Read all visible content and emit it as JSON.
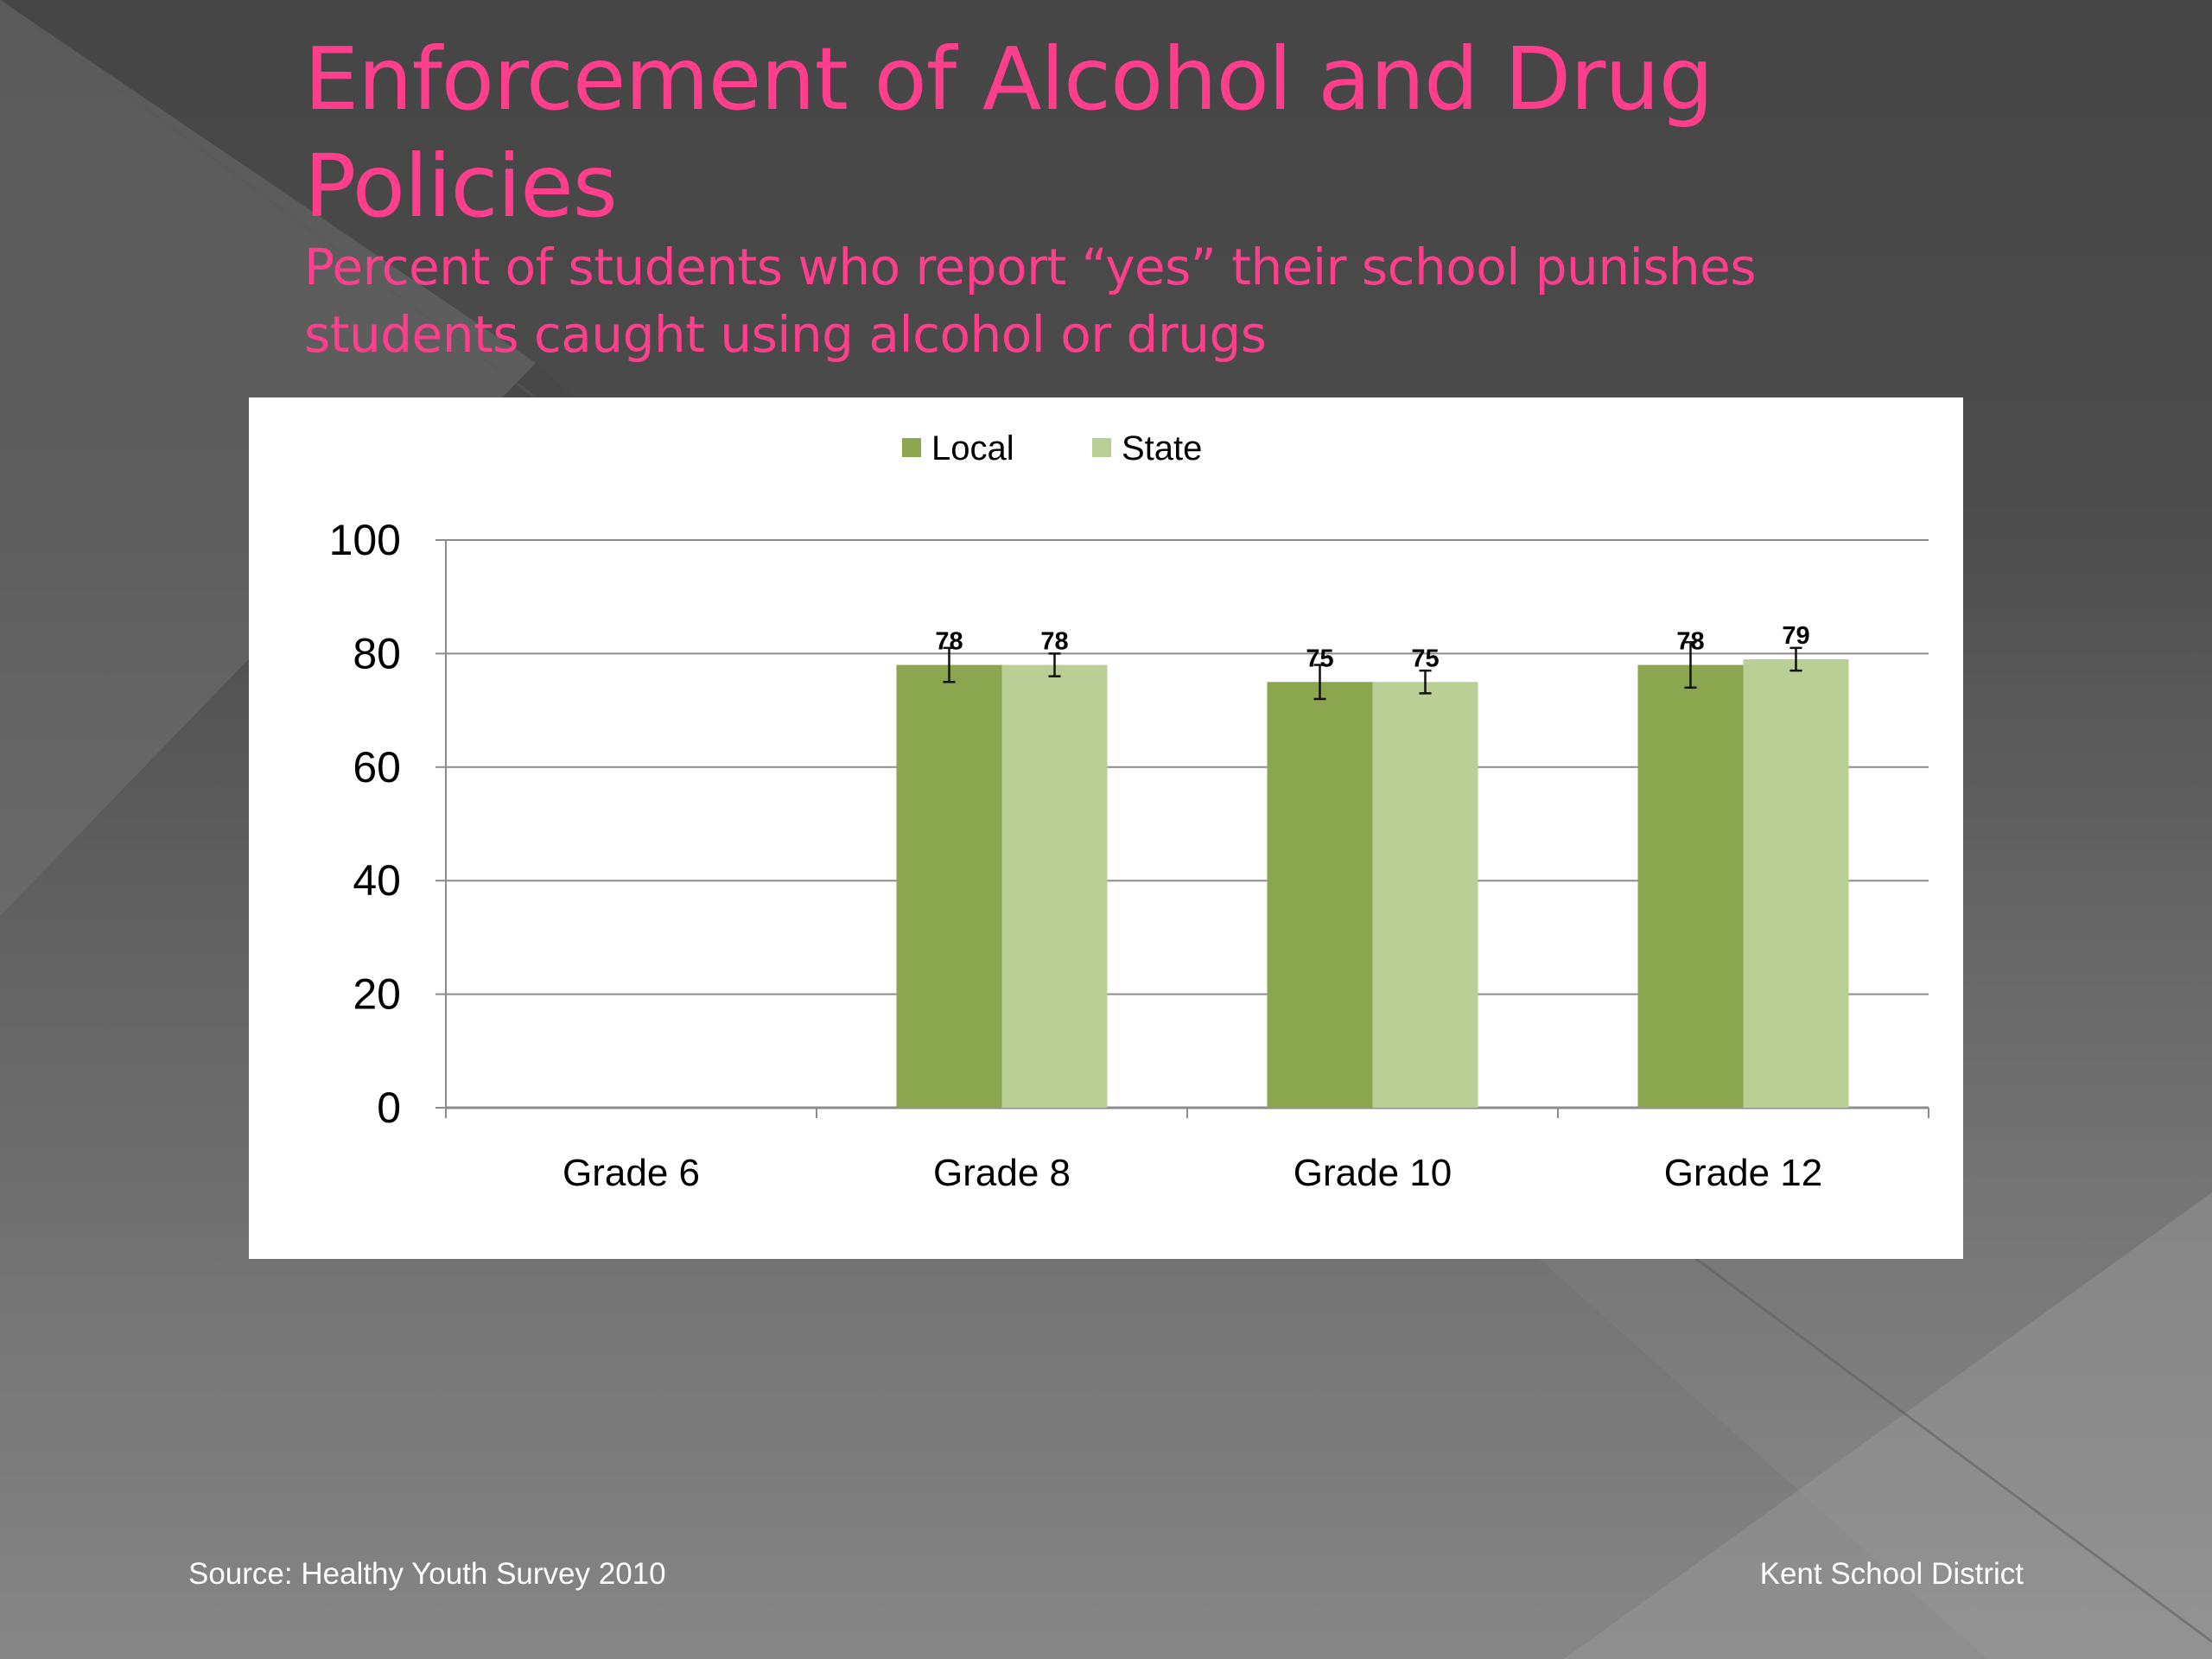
{
  "slide": {
    "title": "Enforcement of Alcohol and Drug Policies",
    "subtitle": "Percent of students who report “yes” their school punishes students caught using alcohol or drugs",
    "source": "Source: Healthy Youth Survey 2010",
    "organization": "Kent School District"
  },
  "colors": {
    "title": "#ff3f8c",
    "local": "#8aa64f",
    "state": "#b9cf96"
  },
  "chart_data": {
    "type": "bar",
    "categories": [
      "Grade 6",
      "Grade 8",
      "Grade 10",
      "Grade 12"
    ],
    "series": [
      {
        "name": "Local",
        "values": [
          null,
          78,
          75,
          78
        ],
        "error": [
          null,
          3,
          3,
          4
        ]
      },
      {
        "name": "State",
        "values": [
          null,
          78,
          75,
          79
        ],
        "error": [
          null,
          2,
          2,
          2
        ]
      }
    ],
    "data_labels": {
      "Local": [
        null,
        "78",
        "75",
        "78"
      ],
      "State": [
        null,
        "78",
        "75",
        "79"
      ]
    },
    "ylim": [
      0,
      100
    ],
    "yticks": [
      0,
      20,
      40,
      60,
      80,
      100
    ],
    "grid": true,
    "legend": "top-center"
  }
}
